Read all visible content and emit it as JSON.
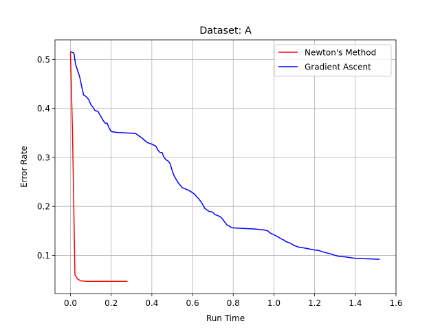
{
  "chart_data": {
    "type": "line",
    "title": "Dataset: A",
    "xlabel": "Run Time",
    "ylabel": "Error Rate",
    "xlim": [
      -0.076,
      1.6
    ],
    "ylim": [
      0.022,
      0.54
    ],
    "xticks": [
      0.0,
      0.2,
      0.4,
      0.6,
      0.8,
      1.0,
      1.2,
      1.4,
      1.6
    ],
    "xtick_labels": [
      "0.0",
      "0.2",
      "0.4",
      "0.6",
      "0.8",
      "1.0",
      "1.2",
      "1.4",
      "1.6"
    ],
    "yticks": [
      0.1,
      0.2,
      0.3,
      0.4,
      0.5
    ],
    "ytick_labels": [
      "0.1",
      "0.2",
      "0.3",
      "0.4",
      "0.5"
    ],
    "grid": true,
    "legend_position": "top-right",
    "series": [
      {
        "name": "Newton's Method",
        "color": "#ff0000",
        "x": [
          0.0,
          0.01,
          0.022,
          0.035,
          0.05,
          0.08,
          0.15,
          0.28
        ],
        "y": [
          0.515,
          0.35,
          0.06,
          0.052,
          0.048,
          0.047,
          0.047,
          0.047
        ]
      },
      {
        "name": "Gradient Ascent",
        "color": "#0000ff",
        "x": [
          0.0,
          0.017,
          0.025,
          0.035,
          0.045,
          0.055,
          0.065,
          0.075,
          0.09,
          0.1,
          0.11,
          0.12,
          0.135,
          0.15,
          0.16,
          0.17,
          0.18,
          0.19,
          0.2,
          0.21,
          0.23,
          0.27,
          0.32,
          0.35,
          0.37,
          0.38,
          0.4,
          0.41,
          0.42,
          0.43,
          0.44,
          0.45,
          0.46,
          0.47,
          0.48,
          0.49,
          0.5,
          0.51,
          0.53,
          0.55,
          0.58,
          0.6,
          0.61,
          0.62,
          0.63,
          0.64,
          0.65,
          0.66,
          0.68,
          0.7,
          0.71,
          0.72,
          0.74,
          0.76,
          0.77,
          0.78,
          0.79,
          0.8,
          0.85,
          0.9,
          0.95,
          0.97,
          0.98,
          1.0,
          1.02,
          1.03,
          1.05,
          1.06,
          1.08,
          1.1,
          1.12,
          1.15,
          1.2,
          1.22,
          1.25,
          1.28,
          1.3,
          1.32,
          1.35,
          1.4,
          1.45,
          1.52
        ],
        "y": [
          0.516,
          0.513,
          0.49,
          0.478,
          0.465,
          0.445,
          0.427,
          0.425,
          0.418,
          0.408,
          0.403,
          0.396,
          0.394,
          0.383,
          0.376,
          0.37,
          0.37,
          0.36,
          0.353,
          0.352,
          0.351,
          0.35,
          0.349,
          0.34,
          0.333,
          0.33,
          0.327,
          0.325,
          0.323,
          0.315,
          0.31,
          0.31,
          0.3,
          0.295,
          0.293,
          0.287,
          0.273,
          0.262,
          0.248,
          0.238,
          0.233,
          0.228,
          0.225,
          0.22,
          0.216,
          0.21,
          0.204,
          0.196,
          0.19,
          0.188,
          0.183,
          0.182,
          0.178,
          0.167,
          0.162,
          0.16,
          0.157,
          0.156,
          0.155,
          0.154,
          0.152,
          0.15,
          0.146,
          0.142,
          0.138,
          0.135,
          0.131,
          0.128,
          0.125,
          0.12,
          0.117,
          0.115,
          0.111,
          0.11,
          0.106,
          0.103,
          0.1,
          0.098,
          0.097,
          0.094,
          0.093,
          0.092
        ]
      }
    ]
  }
}
